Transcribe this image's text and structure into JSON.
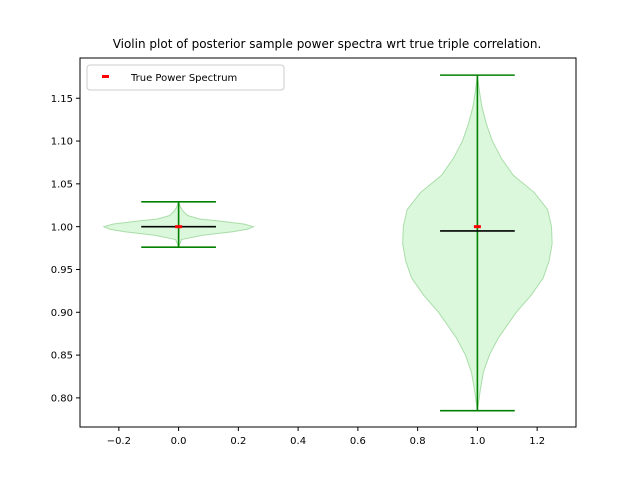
{
  "chart_data": {
    "type": "violin",
    "title": "Violin plot of posterior sample power spectra wrt true triple correlation.",
    "xlabel": "",
    "ylabel": "",
    "xlim": [
      -0.33,
      1.33
    ],
    "ylim": [
      0.766,
      1.197
    ],
    "xticks": [
      -0.2,
      0.0,
      0.2,
      0.4,
      0.6,
      0.8,
      1.0,
      1.2
    ],
    "xtick_labels": [
      "−0.2",
      "0.0",
      "0.2",
      "0.4",
      "0.6",
      "0.8",
      "1.0",
      "1.2"
    ],
    "yticks": [
      0.8,
      0.85,
      0.9,
      0.95,
      1.0,
      1.05,
      1.1,
      1.15
    ],
    "ytick_labels": [
      "0.80",
      "0.85",
      "0.90",
      "0.95",
      "1.00",
      "1.05",
      "1.10",
      "1.15"
    ],
    "legend": {
      "position": "upper-left",
      "entries": [
        "True Power Spectrum"
      ]
    },
    "violins": [
      {
        "position": 0.0,
        "min": 0.976,
        "max": 1.029,
        "median": 1.0,
        "true_value": 1.0,
        "profile": [
          [
            0.976,
            0.0
          ],
          [
            0.985,
            0.01
          ],
          [
            0.99,
            0.08
          ],
          [
            0.994,
            0.18
          ],
          [
            0.997,
            0.23
          ],
          [
            1.0,
            0.25
          ],
          [
            1.003,
            0.22
          ],
          [
            1.006,
            0.15
          ],
          [
            1.009,
            0.07
          ],
          [
            1.013,
            0.03
          ],
          [
            1.018,
            0.015
          ],
          [
            1.023,
            0.006
          ],
          [
            1.029,
            0.0
          ]
        ]
      },
      {
        "position": 1.0,
        "min": 0.785,
        "max": 1.177,
        "median": 0.995,
        "true_value": 1.0,
        "profile": [
          [
            0.785,
            0.0
          ],
          [
            0.81,
            0.01
          ],
          [
            0.83,
            0.02
          ],
          [
            0.85,
            0.04
          ],
          [
            0.87,
            0.07
          ],
          [
            0.9,
            0.13
          ],
          [
            0.92,
            0.18
          ],
          [
            0.94,
            0.22
          ],
          [
            0.96,
            0.24
          ],
          [
            0.98,
            0.25
          ],
          [
            1.0,
            0.248
          ],
          [
            1.02,
            0.235
          ],
          [
            1.04,
            0.19
          ],
          [
            1.06,
            0.12
          ],
          [
            1.08,
            0.08
          ],
          [
            1.1,
            0.05
          ],
          [
            1.12,
            0.03
          ],
          [
            1.14,
            0.015
          ],
          [
            1.16,
            0.006
          ],
          [
            1.177,
            0.0
          ]
        ]
      }
    ],
    "colors": {
      "body_fill": "#dcf8dc",
      "body_edge": "#a8dda8",
      "whisker": "#008000",
      "median": "#000000",
      "true_marker": "#ff0000",
      "axes": "#000000"
    }
  }
}
